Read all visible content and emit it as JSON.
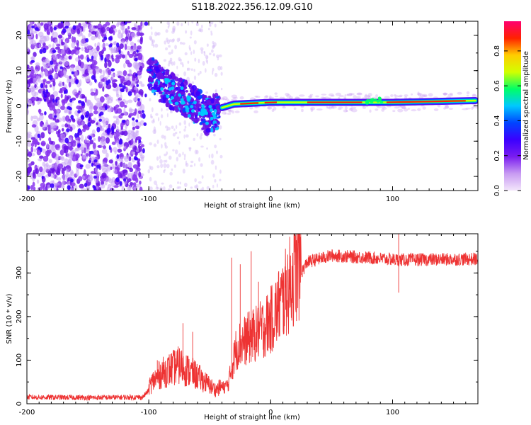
{
  "title": "S118.2022.356.12.09.G10",
  "chart_data": [
    {
      "type": "heatmap",
      "xlabel": "Height of straight line (km)",
      "ylabel": "Frequency (Hz)",
      "xlim": [
        -200,
        170
      ],
      "ylim": [
        -24,
        24
      ],
      "xticks": [
        -200,
        -100,
        0,
        100
      ],
      "yticks": [
        -20,
        -10,
        0,
        10,
        20
      ],
      "colorbar": {
        "label": "Normalized spectral amplitude",
        "range": [
          0.0,
          0.97
        ],
        "ticks": [
          "0.0",
          "0.2",
          "0.4",
          "0.6",
          "0.8"
        ],
        "colors": [
          "#f3e6fb",
          "#c89bf2",
          "#7a1cf0",
          "#3b00ff",
          "#0044ff",
          "#00c8ff",
          "#00ff66",
          "#d2ff00",
          "#ffcc00",
          "#ff2200",
          "#ff0070"
        ]
      },
      "ridge": [
        {
          "x": -98,
          "y": 9
        },
        {
          "x": -90,
          "y": 6
        },
        {
          "x": -80,
          "y": 4
        },
        {
          "x": -70,
          "y": 2
        },
        {
          "x": -60,
          "y": 0
        },
        {
          "x": -52,
          "y": -3
        },
        {
          "x": -45,
          "y": -1.5
        },
        {
          "x": -40,
          "y": -0.5
        },
        {
          "x": -30,
          "y": 0.5
        },
        {
          "x": 0,
          "y": 1
        },
        {
          "x": 100,
          "y": 1
        },
        {
          "x": 168,
          "y": 1.5
        }
      ]
    },
    {
      "type": "line",
      "xlabel": "Height of straight line (km)",
      "ylabel": "SNR (10 * v/v)",
      "xlim": [
        -200,
        170
      ],
      "ylim": [
        0,
        390
      ],
      "xticks": [
        -200,
        -100,
        0,
        100
      ],
      "yticks": [
        0,
        100,
        200,
        300
      ],
      "color": "#ee3333",
      "envelope": [
        {
          "x": -200,
          "y": 15
        },
        {
          "x": -150,
          "y": 14
        },
        {
          "x": -105,
          "y": 15
        },
        {
          "x": -97,
          "y": 40
        },
        {
          "x": -90,
          "y": 55
        },
        {
          "x": -75,
          "y": 70
        },
        {
          "x": -60,
          "y": 50
        },
        {
          "x": -45,
          "y": 25
        },
        {
          "x": -35,
          "y": 40
        },
        {
          "x": -28,
          "y": 120
        },
        {
          "x": -20,
          "y": 135
        },
        {
          "x": -10,
          "y": 150
        },
        {
          "x": 0,
          "y": 175
        },
        {
          "x": 10,
          "y": 220
        },
        {
          "x": 20,
          "y": 275
        },
        {
          "x": 30,
          "y": 325
        },
        {
          "x": 50,
          "y": 340
        },
        {
          "x": 80,
          "y": 335
        },
        {
          "x": 105,
          "y": 330
        },
        {
          "x": 170,
          "y": 332
        }
      ],
      "spikes": [
        {
          "x": -93,
          "y": 100
        },
        {
          "x": -72,
          "y": 185
        },
        {
          "x": -64,
          "y": 165
        },
        {
          "x": -32,
          "y": 335
        },
        {
          "x": -25,
          "y": 320
        },
        {
          "x": -16,
          "y": 350
        },
        {
          "x": -10,
          "y": 280
        },
        {
          "x": 105,
          "y": 390
        },
        {
          "x": 105,
          "y": 255
        }
      ]
    }
  ]
}
